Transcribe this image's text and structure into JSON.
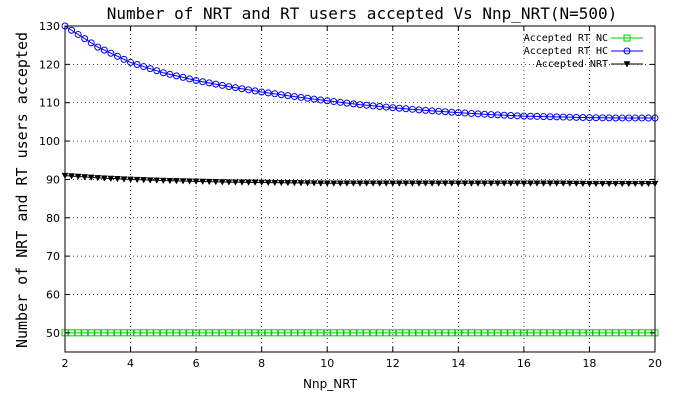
{
  "chart_data": {
    "type": "line",
    "title": "Number of NRT and RT users accepted Vs Nnp_NRT(N=500)",
    "xlabel": "Nnp_NRT",
    "ylabel": "Number of NRT and RT users accepted",
    "xlim": [
      2,
      20
    ],
    "ylim": [
      45,
      130
    ],
    "xticks": [
      2,
      4,
      6,
      8,
      10,
      12,
      14,
      16,
      18,
      20
    ],
    "yticks": [
      50,
      60,
      70,
      80,
      90,
      100,
      110,
      120,
      130
    ],
    "grid": true,
    "legend_position": "top-right",
    "x": [
      2,
      3,
      4,
      5,
      6,
      7,
      8,
      9,
      10,
      11,
      12,
      13,
      14,
      15,
      16,
      17,
      18,
      19,
      20
    ],
    "series": [
      {
        "name": "Accepted RT NC",
        "color": "#00cc00",
        "marker": "square",
        "values": [
          50,
          50,
          50,
          50,
          50,
          50,
          50,
          50,
          50,
          50,
          50,
          50,
          50,
          50,
          50,
          50,
          50,
          50,
          50
        ]
      },
      {
        "name": "Accepted RT HC",
        "color": "#0000ff",
        "marker": "circle",
        "values": [
          130,
          124.5,
          120.5,
          117.8,
          115.8,
          114.2,
          112.8,
          111.6,
          110.5,
          109.5,
          108.7,
          108,
          107.4,
          106.9,
          106.5,
          106.3,
          106.1,
          106,
          106
        ]
      },
      {
        "name": "Accepted NRT",
        "color": "#000000",
        "marker": "triangle-down",
        "values": [
          91,
          90.4,
          90,
          89.7,
          89.5,
          89.3,
          89.2,
          89.1,
          89,
          89,
          89,
          89,
          89,
          89,
          89,
          89,
          88.9,
          88.9,
          88.9
        ]
      }
    ]
  }
}
